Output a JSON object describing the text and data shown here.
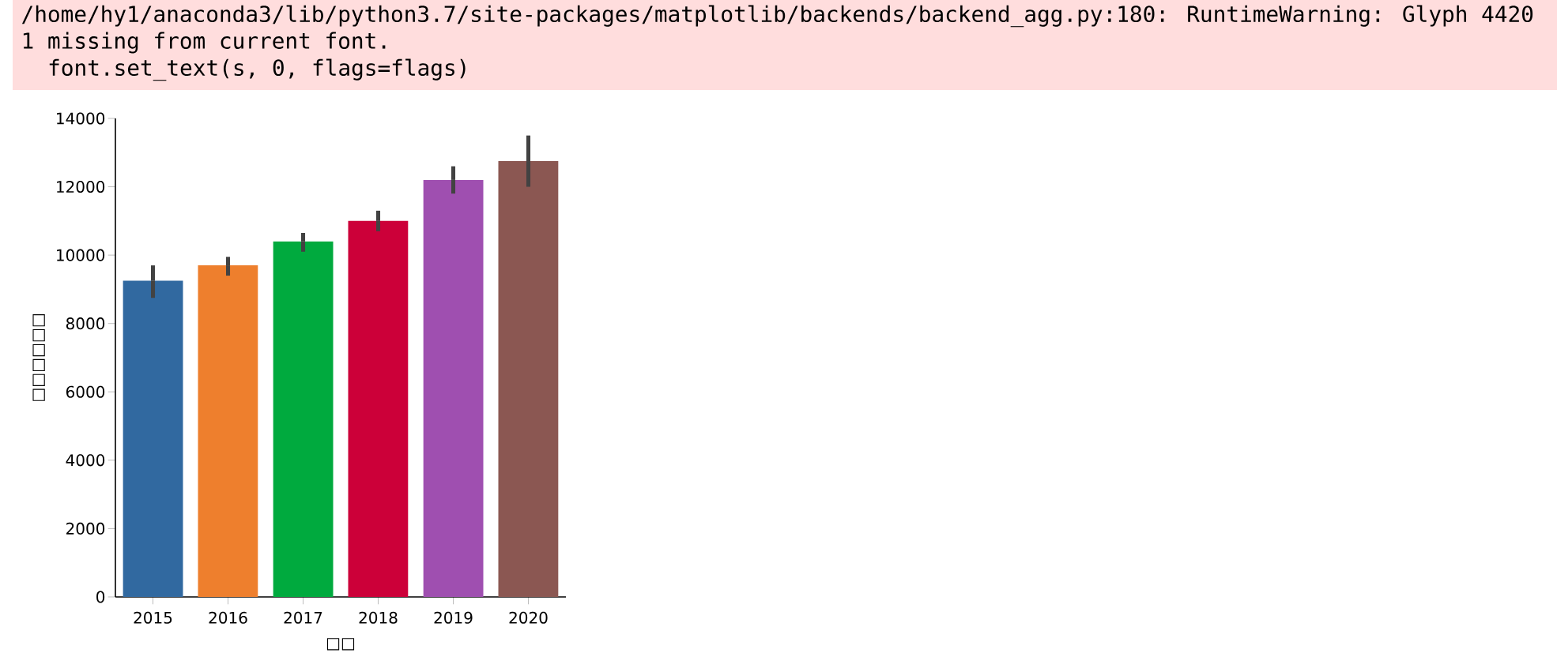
{
  "chart_data": {
    "type": "bar",
    "xlabel": "□□",
    "ylabel": "□□□□□□",
    "categories": [
      "2015",
      "2016",
      "2017",
      "2018",
      "2019",
      "2020"
    ],
    "values": [
      9250,
      9700,
      10400,
      11000,
      12200,
      12750
    ],
    "colors": [
      "#3169a0",
      "#ee7f2d",
      "#00aa3e",
      "#cc0039",
      "#9f4fb0",
      "#8b5752"
    ],
    "errors": [
      [
        8750,
        9700
      ],
      [
        9400,
        9950
      ],
      [
        10100,
        10650
      ],
      [
        10700,
        11300
      ],
      [
        11800,
        12600
      ],
      [
        12000,
        13500
      ]
    ],
    "ylim": [
      0,
      14000
    ],
    "yticks": [
      0,
      2000,
      4000,
      6000,
      8000,
      10000,
      12000,
      14000
    ],
    "annotations": [
      "/home/hy1/anaconda3/lib/python3.7/site-packages/matplotlib/backends/backend_agg.py:180: RuntimeWarning: Glyph 4420",
      "1 missing from current font.",
      "font.set_text(s, 0, flags=flags)"
    ]
  }
}
